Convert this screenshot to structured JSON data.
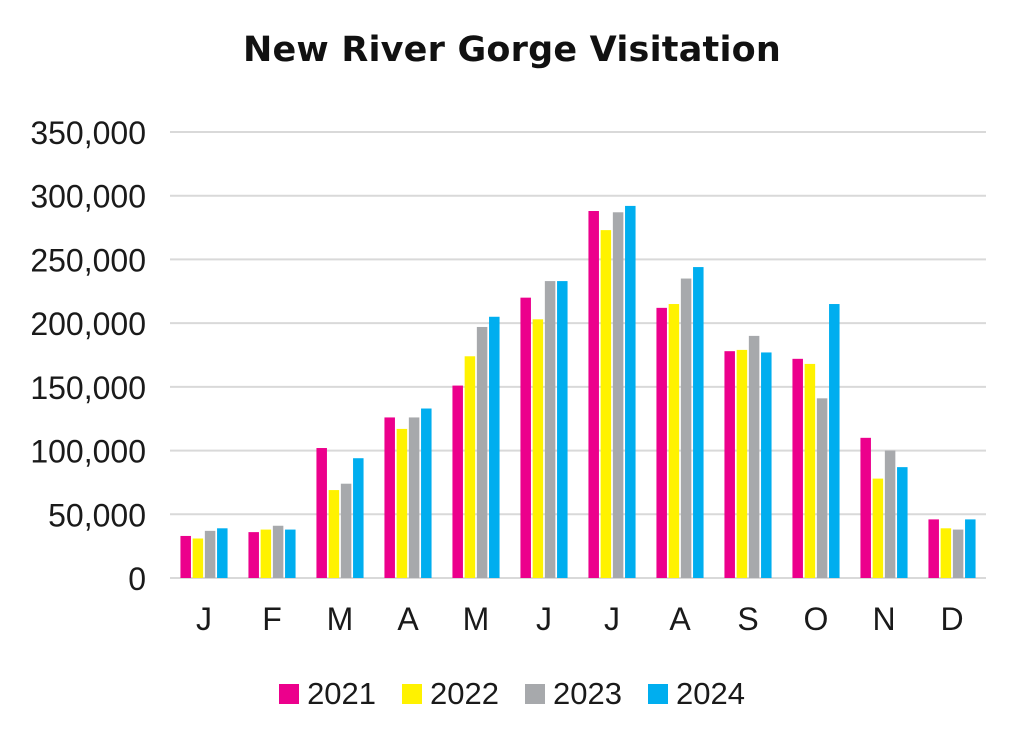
{
  "chart_data": {
    "type": "bar",
    "title": "New River Gorge Visitation",
    "xlabel": "",
    "ylabel": "",
    "categories": [
      "J",
      "F",
      "M",
      "A",
      "M",
      "J",
      "J",
      "A",
      "S",
      "O",
      "N",
      "D"
    ],
    "series": [
      {
        "name": "2021",
        "color": "#ec008c",
        "values": [
          33000,
          36000,
          102000,
          126000,
          151000,
          220000,
          288000,
          212000,
          178000,
          172000,
          110000,
          46000
        ]
      },
      {
        "name": "2022",
        "color": "#fff200",
        "values": [
          31000,
          38000,
          69000,
          117000,
          174000,
          203000,
          273000,
          215000,
          179000,
          168000,
          78000,
          39000
        ]
      },
      {
        "name": "2023",
        "color": "#a7a9ac",
        "values": [
          37000,
          41000,
          74000,
          126000,
          197000,
          233000,
          287000,
          235000,
          190000,
          141000,
          100000,
          38000
        ]
      },
      {
        "name": "2024",
        "color": "#00aeef",
        "values": [
          39000,
          38000,
          94000,
          133000,
          205000,
          233000,
          292000,
          244000,
          177000,
          215000,
          87000,
          46000
        ]
      }
    ],
    "ylim": [
      0,
      350000
    ],
    "yticks": [
      0,
      50000,
      100000,
      150000,
      200000,
      250000,
      300000,
      350000
    ],
    "ytick_labels": [
      "0",
      "50,000",
      "100,000",
      "150,000",
      "200,000",
      "250,000",
      "300,000",
      "350,000"
    ],
    "grid": true,
    "legend_position": "bottom",
    "gridline_color": "#d9d9d9"
  }
}
